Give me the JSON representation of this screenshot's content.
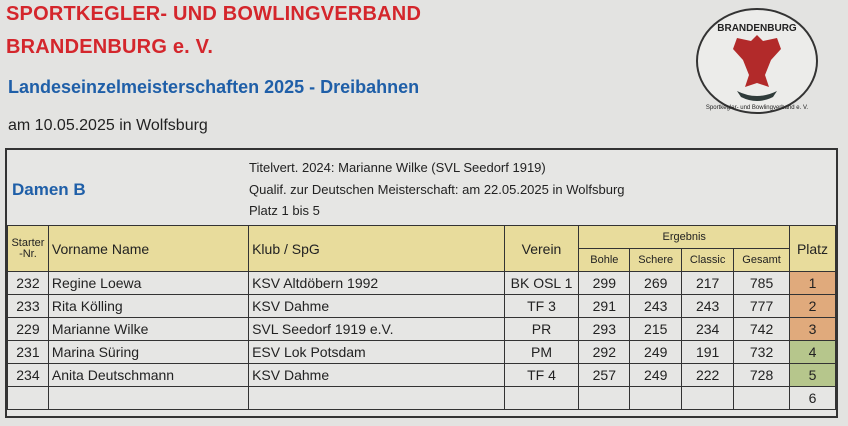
{
  "header": {
    "org_line1": "SPORTKEGLER- UND BOWLINGVERBAND",
    "org_line2": "BRANDENBURG e. V.",
    "event": "Landeseinzelmeisterschaften 2025 - Dreibahnen",
    "date": "am 10.05.2025 in Wolfsburg",
    "logo": {
      "top_text": "BRANDENBURG",
      "ring_text": "Sportkegler- und Bowlingverband e. V.",
      "icon": "red-eagle-icon"
    }
  },
  "section": {
    "category": "Damen B",
    "title_holder": "Titelvert. 2024: Marianne Wilke (SVL Seedorf 1919)",
    "qualification": "Qualif. zur Deutschen Meisterschaft: am 22.05.2025 in Wolfsburg",
    "places": "Platz 1 bis 5"
  },
  "table": {
    "headers": {
      "starter": "Starter-Nr.",
      "name": "Vorname Name",
      "club": "Klub / SpG",
      "verein": "Verein",
      "ergebnis": "Ergebnis",
      "bohle": "Bohle",
      "schere": "Schere",
      "classic": "Classic",
      "gesamt": "Gesamt",
      "platz": "Platz"
    },
    "rows": [
      {
        "nr": "232",
        "name": "Regine Loewa",
        "club": "KSV Altdöbern 1992",
        "verein": "BK OSL 1",
        "bohle": "299",
        "schere": "269",
        "classic": "217",
        "gesamt": "785",
        "platz": "1"
      },
      {
        "nr": "233",
        "name": "Rita Kölling",
        "club": "KSV Dahme",
        "verein": "TF 3",
        "bohle": "291",
        "schere": "243",
        "classic": "243",
        "gesamt": "777",
        "platz": "2"
      },
      {
        "nr": "229",
        "name": "Marianne Wilke",
        "club": "SVL Seedorf 1919 e.V.",
        "verein": "PR",
        "bohle": "293",
        "schere": "215",
        "classic": "234",
        "gesamt": "742",
        "platz": "3"
      },
      {
        "nr": "231",
        "name": "Marina Süring",
        "club": "ESV Lok Potsdam",
        "verein": "PM",
        "bohle": "292",
        "schere": "249",
        "classic": "191",
        "gesamt": "732",
        "platz": "4"
      },
      {
        "nr": "234",
        "name": "Anita Deutschmann",
        "club": "KSV Dahme",
        "verein": "TF 4",
        "bohle": "257",
        "schere": "249",
        "classic": "222",
        "gesamt": "728",
        "platz": "5"
      },
      {
        "nr": "",
        "name": "",
        "club": "",
        "verein": "",
        "bohle": "",
        "schere": "",
        "classic": "",
        "gesamt": "",
        "platz": "6"
      }
    ]
  },
  "colors": {
    "org": "#d4262c",
    "blue": "#1f5fa8",
    "header_bg": "#e8dc9c",
    "podium": "#e0aa7c",
    "qualified": "#b6c68c"
  }
}
